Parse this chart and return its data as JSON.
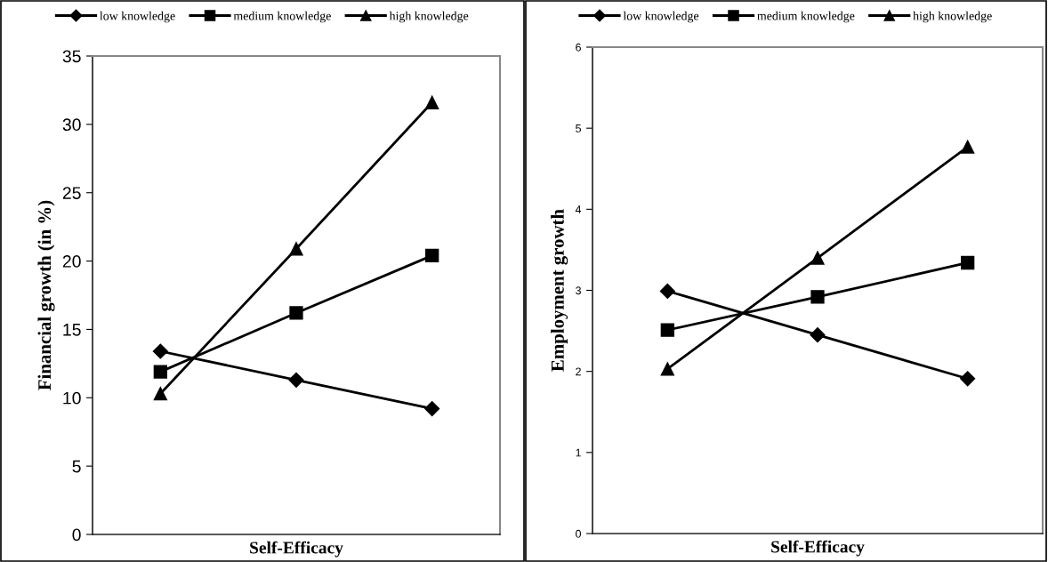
{
  "chart_data": [
    {
      "type": "line",
      "categories": [
        null,
        null,
        null
      ],
      "xlabel": "Self-Efficacy",
      "ylabel": "Financial growth (in %)",
      "ylim": [
        0,
        35
      ],
      "yticks": [
        0,
        5,
        10,
        15,
        20,
        25,
        30,
        35
      ],
      "grid": false,
      "legend": "top",
      "series": [
        {
          "name": "low knowledge",
          "color": "#000000",
          "marker": "diamond",
          "values": [
            13.4,
            11.3,
            9.2
          ]
        },
        {
          "name": "medium knowledge",
          "color": "#000000",
          "marker": "square",
          "values": [
            11.9,
            16.2,
            20.4
          ]
        },
        {
          "name": "high knowledge",
          "color": "#000000",
          "marker": "triangle",
          "values": [
            10.3,
            20.9,
            31.6
          ]
        }
      ]
    },
    {
      "type": "line",
      "categories": [
        null,
        null,
        null
      ],
      "xlabel": "Self-Efficacy",
      "ylabel": "Employment growth",
      "ylim": [
        0,
        6
      ],
      "yticks": [
        0,
        1,
        2,
        3,
        4,
        5,
        6
      ],
      "grid": false,
      "legend": "top",
      "series": [
        {
          "name": "low knowledge",
          "color": "#000000",
          "marker": "diamond",
          "values": [
            2.99,
            2.45,
            1.91
          ]
        },
        {
          "name": "medium knowledge",
          "color": "#000000",
          "marker": "square",
          "values": [
            2.51,
            2.92,
            3.34
          ]
        },
        {
          "name": "high knowledge",
          "color": "#000000",
          "marker": "triangle",
          "values": [
            2.03,
            3.4,
            4.77
          ]
        }
      ]
    }
  ]
}
